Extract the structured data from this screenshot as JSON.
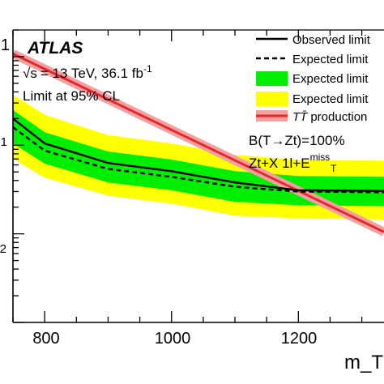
{
  "chart_data": {
    "type": "line",
    "title": "",
    "xlabel": "m_T [",
    "ylabel": "",
    "x_ticks": [
      "800",
      "1000",
      "1200"
    ],
    "y_ticks": [
      "1",
      "1",
      "2"
    ],
    "xlim": [
      750,
      1335
    ],
    "ylim": [
      0.001,
      2.0
    ],
    "y_scale": "log",
    "annotations": {
      "atlas": "ATLAS",
      "energy_prefix": "√s",
      "energy": "= 13 TeV, 36.1 fb",
      "energy_sup": "-1",
      "cl": "Limit at 95% CL",
      "br": "B(T→Zt)=100%",
      "channel": "Zt+X 1l+E",
      "channel_sup": "miss",
      "channel_sub": "T"
    },
    "legend": {
      "position": "top-right",
      "entries": [
        {
          "label": "Observed limit",
          "color": "#000000",
          "style": "solid"
        },
        {
          "label": "Expected limit",
          "color": "#000000",
          "style": "dashed"
        },
        {
          "label": "Expected limit",
          "color": "#00ee00",
          "style": "band"
        },
        {
          "label": "Expected limit",
          "color": "#ffff00",
          "style": "band"
        },
        {
          "label": "production",
          "prefix": "TT̄",
          "color": "#e8272c",
          "style": "theory"
        }
      ]
    },
    "x": [
      750,
      800,
      900,
      1000,
      1100,
      1200,
      1335
    ],
    "series": [
      {
        "name": "Observed limit",
        "color": "#000000",
        "values": [
          0.2,
          0.105,
          0.063,
          0.051,
          0.038,
          0.031,
          0.0305
        ]
      },
      {
        "name": "Expected limit",
        "color": "#000000",
        "values": [
          0.16,
          0.087,
          0.054,
          0.044,
          0.034,
          0.03,
          0.0295
        ]
      }
    ],
    "bands": {
      "green": {
        "color": "#00ee00",
        "low": [
          0.105,
          0.062,
          0.038,
          0.031,
          0.023,
          0.021,
          0.0205
        ],
        "high": [
          0.25,
          0.14,
          0.085,
          0.069,
          0.051,
          0.045,
          0.044
        ]
      },
      "yellow": {
        "color": "#ffff00",
        "low": [
          0.07,
          0.043,
          0.027,
          0.022,
          0.016,
          0.015,
          0.0145
        ],
        "high": [
          0.37,
          0.22,
          0.13,
          0.105,
          0.078,
          0.068,
          0.067
        ]
      }
    },
    "theory": {
      "name": "TT̄ production",
      "color": "#e8272c",
      "band_color": "#f2a0a0",
      "x": [
        750,
        1335
      ],
      "values": [
        1.08,
        0.0105
      ]
    }
  }
}
